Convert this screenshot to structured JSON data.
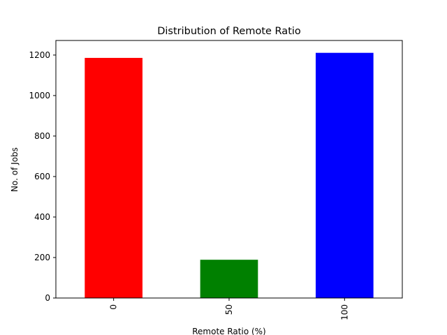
{
  "chart_data": {
    "type": "bar",
    "title": "Distribution of Remote Ratio",
    "xlabel": "Remote Ratio (%)",
    "ylabel": "No. of Jobs",
    "categories": [
      "0",
      "50",
      "100"
    ],
    "values": [
      1186,
      189,
      1211
    ],
    "colors": [
      "#ff0000",
      "#008000",
      "#0000ff"
    ],
    "ylim": [
      0,
      1272
    ],
    "yticks": [
      0,
      200,
      400,
      600,
      800,
      1000,
      1200
    ],
    "x_tick_rotation": 90,
    "grid": false,
    "legend": "none"
  }
}
